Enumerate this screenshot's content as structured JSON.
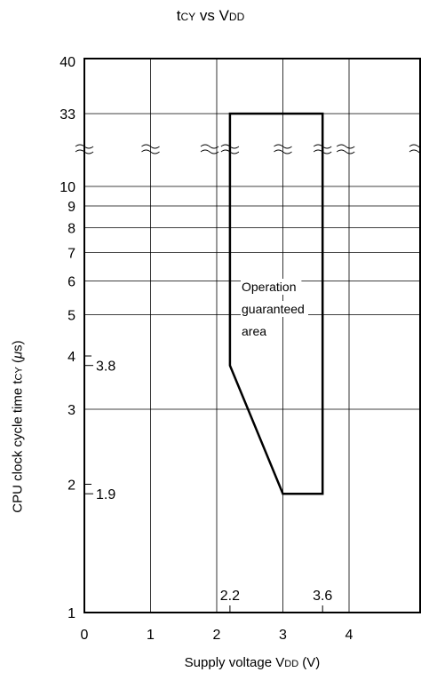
{
  "chart_data": {
    "type": "area",
    "title": {
      "main_a": "t",
      "main_sub_a": "CY",
      "vs": " vs ",
      "main_b": "V",
      "main_sub_b": "DD"
    },
    "xlabel": {
      "text": "Supply voltage V",
      "sub": "DD",
      "unit": " (V)"
    },
    "ylabel": {
      "text": "CPU clock cycle time t",
      "sub": "CY",
      "unit_open": " (",
      "mu": "μ",
      "unit_close": "s)"
    },
    "x_ticks": [
      "0",
      "1",
      "2",
      "3",
      "4"
    ],
    "xlim": [
      0,
      5
    ],
    "y_scale": "log-broken",
    "y_ticks": [
      "1",
      "2",
      "3",
      "4",
      "5",
      "6",
      "7",
      "8",
      "9",
      "10",
      "33",
      "40"
    ],
    "y_markers": [
      "3.8",
      "1.9"
    ],
    "x_markers": [
      "2.2",
      "3.6"
    ],
    "region_label": [
      "Operation",
      "guaranteed",
      "area"
    ],
    "region": [
      {
        "x": 2.2,
        "y": 33
      },
      {
        "x": 3.6,
        "y": 33
      },
      {
        "x": 3.6,
        "y": 1.9
      },
      {
        "x": 3.0,
        "y": 1.9
      },
      {
        "x": 2.2,
        "y": 3.8
      }
    ],
    "grid": true,
    "axis_break": "between 10 and 33"
  }
}
